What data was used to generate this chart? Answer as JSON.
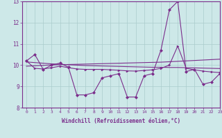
{
  "x": [
    0,
    1,
    2,
    3,
    4,
    5,
    6,
    7,
    8,
    9,
    10,
    11,
    12,
    13,
    14,
    15,
    16,
    17,
    18,
    19,
    20,
    21,
    22,
    23
  ],
  "y_windchill": [
    10.2,
    10.5,
    9.8,
    10.0,
    10.1,
    9.9,
    8.6,
    8.6,
    8.7,
    9.4,
    9.5,
    9.6,
    8.5,
    8.5,
    9.5,
    9.6,
    10.7,
    12.6,
    13.0,
    9.7,
    9.8,
    9.1,
    9.2,
    9.6
  ],
  "y_smooth": [
    10.2,
    9.85,
    9.82,
    9.88,
    9.95,
    9.88,
    9.82,
    9.8,
    9.8,
    9.8,
    9.78,
    9.76,
    9.73,
    9.72,
    9.75,
    9.78,
    9.85,
    10.0,
    10.9,
    9.85,
    9.78,
    9.72,
    9.68,
    9.65
  ],
  "y_reg1": [
    10.15,
    10.12,
    10.09,
    10.06,
    10.04,
    10.02,
    10.0,
    9.98,
    9.97,
    9.96,
    9.95,
    9.94,
    9.93,
    9.92,
    9.91,
    9.9,
    9.9,
    9.89,
    9.89,
    9.88,
    9.87,
    9.86,
    9.85,
    9.84
  ],
  "y_reg2": [
    9.95,
    9.97,
    9.99,
    10.01,
    10.02,
    10.03,
    10.04,
    10.05,
    10.06,
    10.07,
    10.08,
    10.09,
    10.1,
    10.11,
    10.12,
    10.13,
    10.14,
    10.16,
    10.18,
    10.2,
    10.22,
    10.24,
    10.26,
    10.28
  ],
  "xlabel": "Windchill (Refroidissement éolien,°C)",
  "ylim": [
    8,
    13
  ],
  "xlim": [
    -0.5,
    23
  ],
  "yticks": [
    8,
    9,
    10,
    11,
    12,
    13
  ],
  "xticks": [
    0,
    1,
    2,
    3,
    4,
    5,
    6,
    7,
    8,
    9,
    10,
    11,
    12,
    13,
    14,
    15,
    16,
    17,
    18,
    19,
    20,
    21,
    22,
    23
  ],
  "line_color": "#7b2d8b",
  "bg_color": "#cde8e8",
  "grid_color": "#aacccc",
  "xlabel_fontsize": 5.5,
  "tick_fontsize": 4.5,
  "ytick_fontsize": 5.5
}
